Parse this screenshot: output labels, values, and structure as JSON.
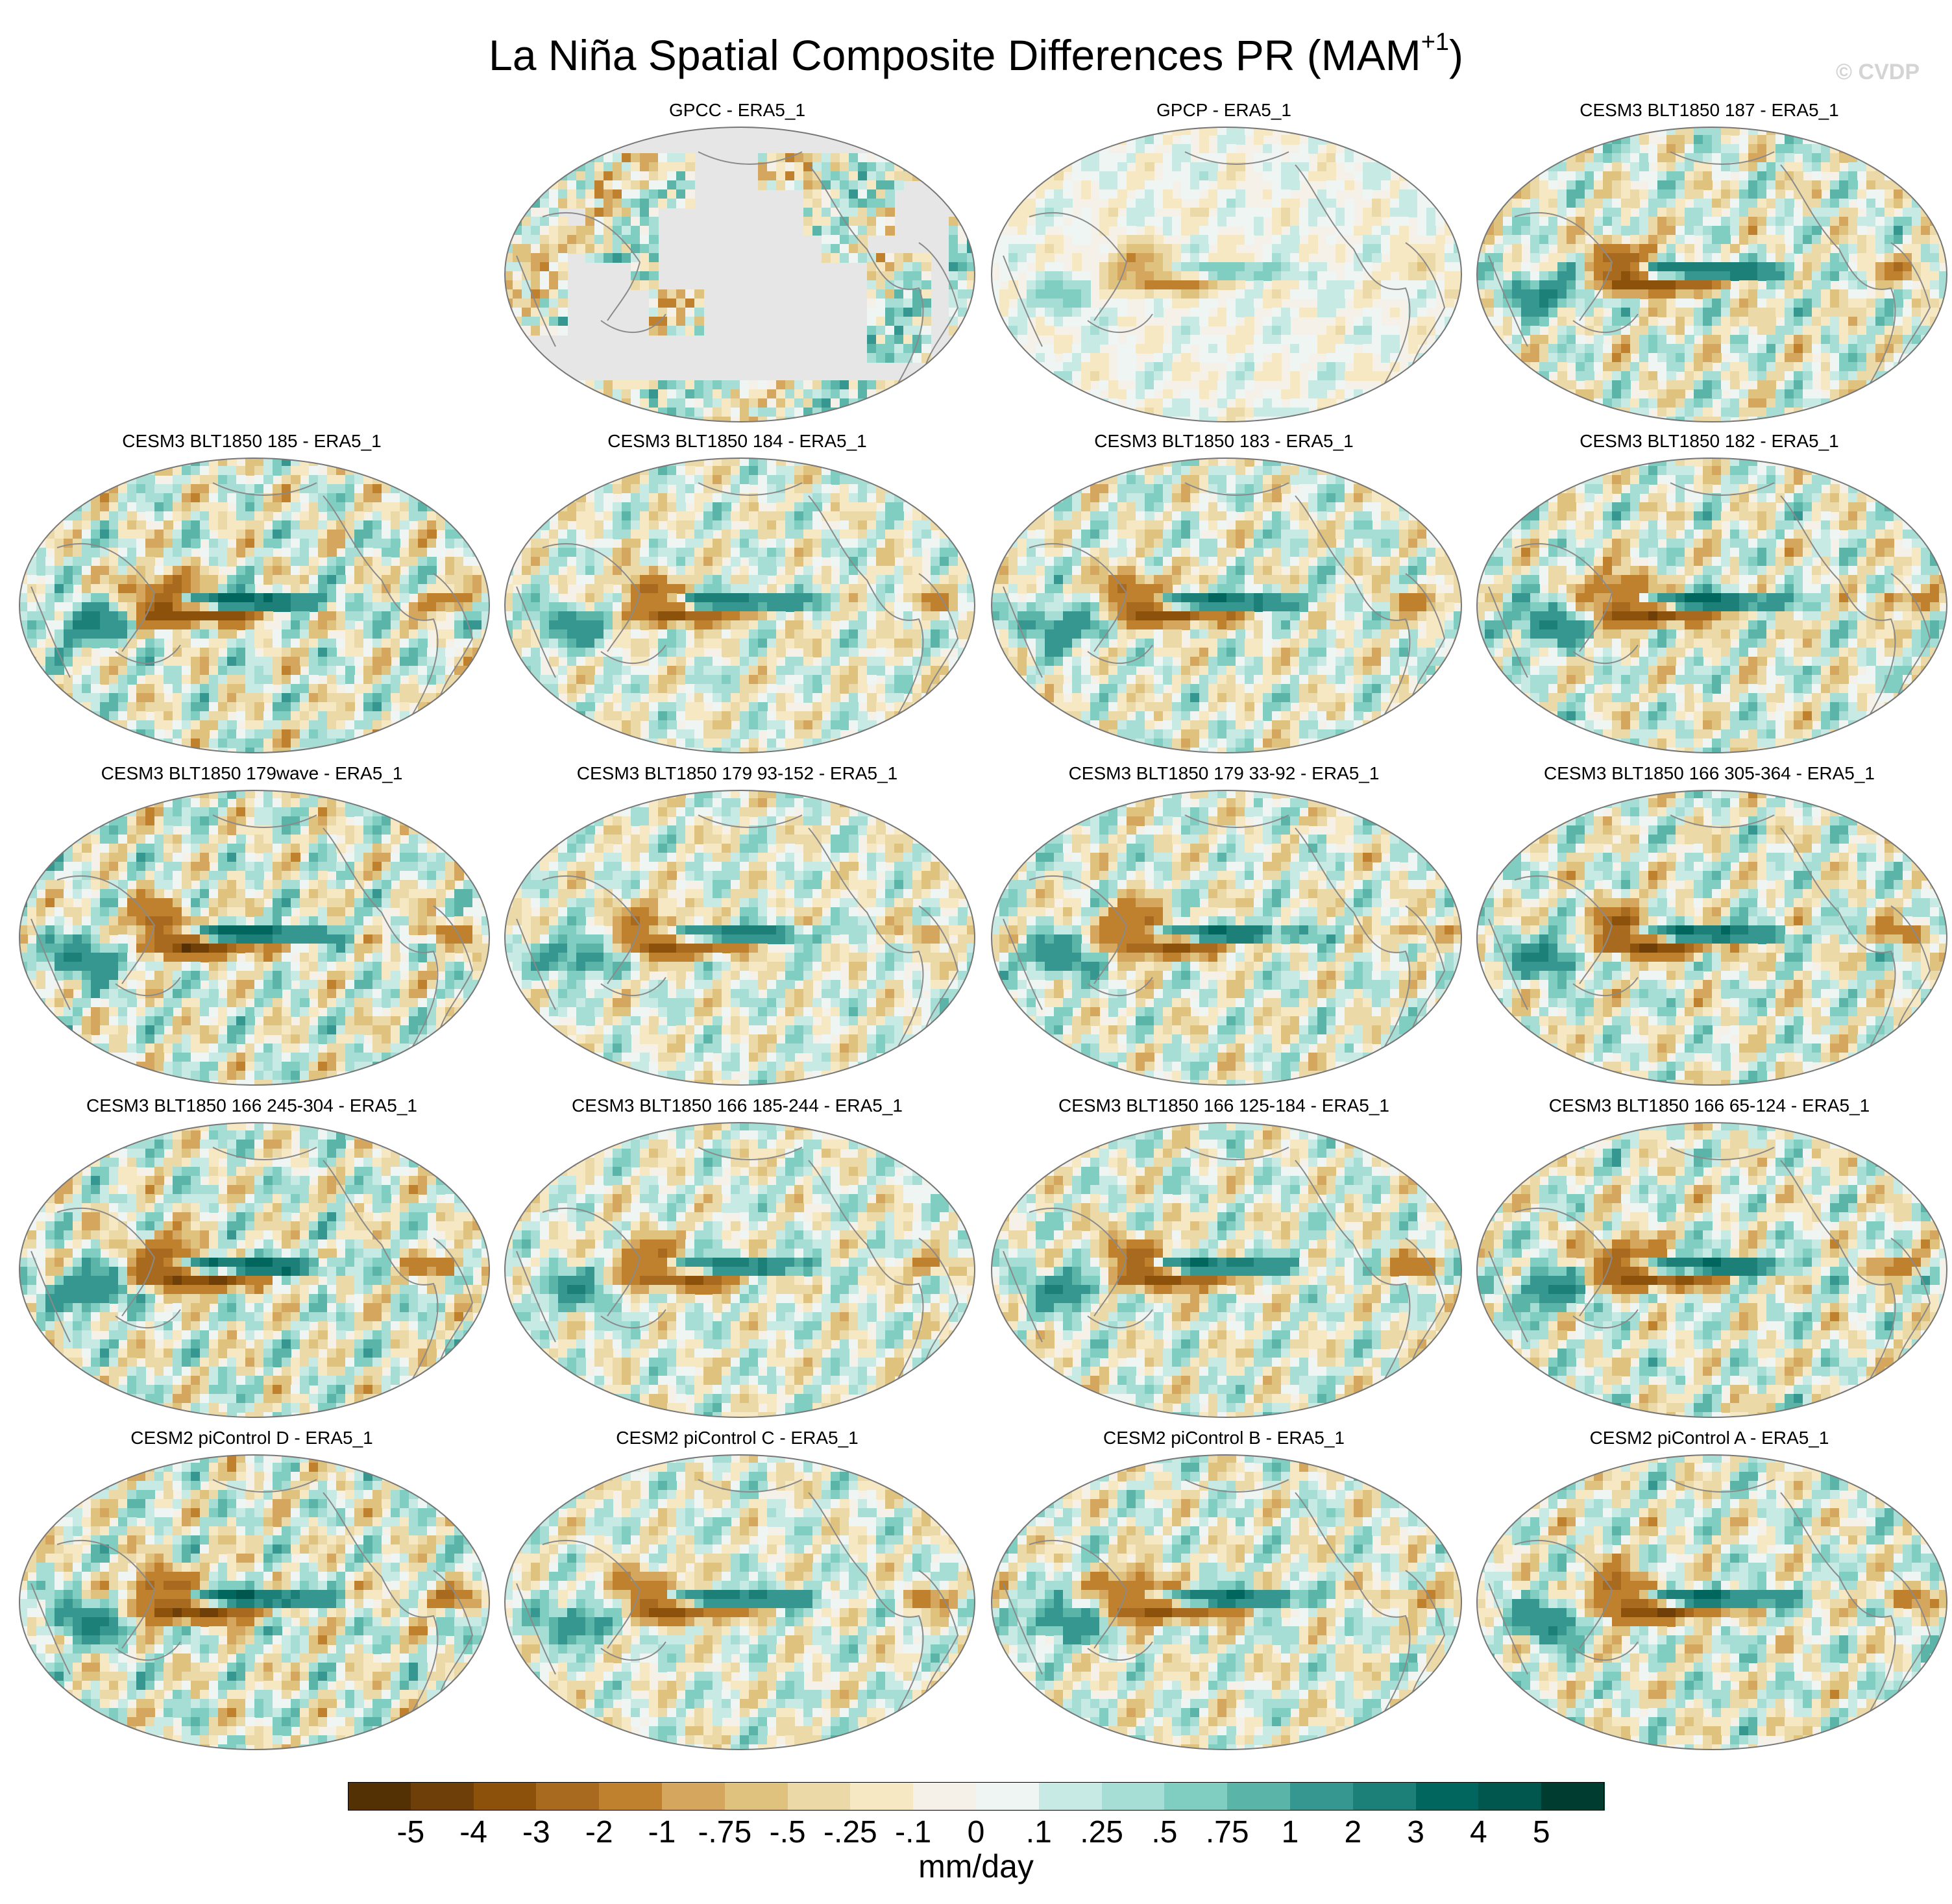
{
  "title": {
    "main": "La Niña Spatial Composite Differences PR (MAM",
    "superscript": "+1",
    "close": ")"
  },
  "credit": "© CVDP",
  "panels": [
    {
      "label": "GPCC - ERA5_1",
      "mode": "land"
    },
    {
      "label": "GPCP - ERA5_1",
      "mode": "obs"
    },
    {
      "label": "CESM3 BLT1850 187 - ERA5_1",
      "mode": "model"
    },
    {
      "label": "CESM3 BLT1850 185 - ERA5_1",
      "mode": "model"
    },
    {
      "label": "CESM3 BLT1850 184 - ERA5_1",
      "mode": "model"
    },
    {
      "label": "CESM3 BLT1850 183 - ERA5_1",
      "mode": "model"
    },
    {
      "label": "CESM3 BLT1850 182 - ERA5_1",
      "mode": "model"
    },
    {
      "label": "CESM3 BLT1850 179wave - ERA5_1",
      "mode": "model"
    },
    {
      "label": "CESM3 BLT1850 179 93-152 - ERA5_1",
      "mode": "model"
    },
    {
      "label": "CESM3 BLT1850 179 33-92 - ERA5_1",
      "mode": "model"
    },
    {
      "label": "CESM3 BLT1850 166 305-364 - ERA5_1",
      "mode": "model"
    },
    {
      "label": "CESM3 BLT1850 166 245-304 - ERA5_1",
      "mode": "model"
    },
    {
      "label": "CESM3 BLT1850 166 185-244 - ERA5_1",
      "mode": "model"
    },
    {
      "label": "CESM3 BLT1850 166 125-184 - ERA5_1",
      "mode": "model"
    },
    {
      "label": "CESM3 BLT1850 166 65-124 - ERA5_1",
      "mode": "model"
    },
    {
      "label": "CESM2 piControl D - ERA5_1",
      "mode": "model"
    },
    {
      "label": "CESM2 piControl C - ERA5_1",
      "mode": "model"
    },
    {
      "label": "CESM2 piControl B - ERA5_1",
      "mode": "model"
    },
    {
      "label": "CESM2 piControl A - ERA5_1",
      "mode": "model"
    }
  ],
  "colorbar": {
    "labels": [
      "-5",
      "-4",
      "-3",
      "-2",
      "-1",
      "-.75",
      "-.5",
      "-.25",
      "-.1",
      "0",
      ".1",
      ".25",
      ".5",
      ".75",
      "1",
      "2",
      "3",
      "4",
      "5"
    ],
    "colors": [
      "#543005",
      "#6f3f0a",
      "#8c510a",
      "#a86a1e",
      "#bf812d",
      "#d4a65e",
      "#dfc27d",
      "#ecd9a8",
      "#f6e8c3",
      "#f5f1e8",
      "#eef5f3",
      "#c7eae5",
      "#a6ddd4",
      "#80cdc1",
      "#5ab4a8",
      "#35978f",
      "#1d8078",
      "#01665e",
      "#01574d",
      "#003c30"
    ],
    "units": "mm/day"
  },
  "ocean_fill": "#e6e6e6",
  "land_outline": "#8a8a8a"
}
